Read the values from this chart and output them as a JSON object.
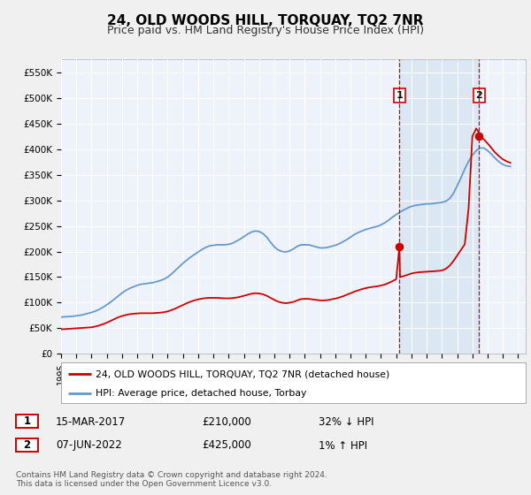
{
  "title": "24, OLD WOODS HILL, TORQUAY, TQ2 7NR",
  "subtitle": "Price paid vs. HM Land Registry's House Price Index (HPI)",
  "title_fontsize": 11,
  "subtitle_fontsize": 9,
  "ylim": [
    0,
    575000
  ],
  "yticks": [
    0,
    50000,
    100000,
    150000,
    200000,
    250000,
    300000,
    350000,
    400000,
    450000,
    500000,
    550000
  ],
  "ytick_labels": [
    "£0",
    "£50K",
    "£100K",
    "£150K",
    "£200K",
    "£250K",
    "£300K",
    "£350K",
    "£400K",
    "£450K",
    "£500K",
    "£550K"
  ],
  "xlim_start": 1995.0,
  "xlim_end": 2025.5,
  "xtick_years": [
    1995,
    1996,
    1997,
    1998,
    1999,
    2000,
    2001,
    2002,
    2003,
    2004,
    2005,
    2006,
    2007,
    2008,
    2009,
    2010,
    2011,
    2012,
    2013,
    2014,
    2015,
    2016,
    2017,
    2018,
    2019,
    2020,
    2021,
    2022,
    2023,
    2024,
    2025
  ],
  "bg_color": "#f0f0f0",
  "plot_bg_color": "#eef3fb",
  "shade_color": "#d0e0f0",
  "grid_color": "#ffffff",
  "red_line_color": "#cc0000",
  "blue_line_color": "#6699cc",
  "marker_color": "#cc0000",
  "dashed_line_color": "#cc0000",
  "point1_x": 2017.21,
  "point1_y": 210000,
  "point2_x": 2022.44,
  "point2_y": 425000,
  "legend_line1": "24, OLD WOODS HILL, TORQUAY, TQ2 7NR (detached house)",
  "legend_line2": "HPI: Average price, detached house, Torbay",
  "annotation1_text": "15-MAR-2017",
  "annotation1_price": "£210,000",
  "annotation1_hpi": "32% ↓ HPI",
  "annotation2_text": "07-JUN-2022",
  "annotation2_price": "£425,000",
  "annotation2_hpi": "1% ↑ HPI",
  "footer1": "Contains HM Land Registry data © Crown copyright and database right 2024.",
  "footer2": "This data is licensed under the Open Government Licence v3.0.",
  "hpi_years": [
    1995.0,
    1995.25,
    1995.5,
    1995.75,
    1996.0,
    1996.25,
    1996.5,
    1996.75,
    1997.0,
    1997.25,
    1997.5,
    1997.75,
    1998.0,
    1998.25,
    1998.5,
    1998.75,
    1999.0,
    1999.25,
    1999.5,
    1999.75,
    2000.0,
    2000.25,
    2000.5,
    2000.75,
    2001.0,
    2001.25,
    2001.5,
    2001.75,
    2002.0,
    2002.25,
    2002.5,
    2002.75,
    2003.0,
    2003.25,
    2003.5,
    2003.75,
    2004.0,
    2004.25,
    2004.5,
    2004.75,
    2005.0,
    2005.25,
    2005.5,
    2005.75,
    2006.0,
    2006.25,
    2006.5,
    2006.75,
    2007.0,
    2007.25,
    2007.5,
    2007.75,
    2008.0,
    2008.25,
    2008.5,
    2008.75,
    2009.0,
    2009.25,
    2009.5,
    2009.75,
    2010.0,
    2010.25,
    2010.5,
    2010.75,
    2011.0,
    2011.25,
    2011.5,
    2011.75,
    2012.0,
    2012.25,
    2012.5,
    2012.75,
    2013.0,
    2013.25,
    2013.5,
    2013.75,
    2014.0,
    2014.25,
    2014.5,
    2014.75,
    2015.0,
    2015.25,
    2015.5,
    2015.75,
    2016.0,
    2016.25,
    2016.5,
    2016.75,
    2017.0,
    2017.25,
    2017.5,
    2017.75,
    2018.0,
    2018.25,
    2018.5,
    2018.75,
    2019.0,
    2019.25,
    2019.5,
    2019.75,
    2020.0,
    2020.25,
    2020.5,
    2020.75,
    2021.0,
    2021.25,
    2021.5,
    2021.75,
    2022.0,
    2022.25,
    2022.5,
    2022.75,
    2023.0,
    2023.25,
    2023.5,
    2023.75,
    2024.0,
    2024.25,
    2024.5
  ],
  "hpi_values": [
    72000,
    72500,
    73000,
    73500,
    74500,
    75500,
    77000,
    79000,
    81000,
    83500,
    87000,
    91000,
    96000,
    101000,
    107000,
    113000,
    119000,
    124000,
    128000,
    131000,
    134000,
    136000,
    137000,
    138000,
    139000,
    141000,
    143000,
    146000,
    150000,
    156000,
    163000,
    170000,
    177000,
    183000,
    189000,
    194000,
    199000,
    204000,
    208000,
    211000,
    212000,
    213000,
    213000,
    213000,
    214000,
    216000,
    220000,
    224000,
    229000,
    234000,
    238000,
    240000,
    239000,
    235000,
    228000,
    218000,
    209000,
    203000,
    200000,
    199000,
    201000,
    205000,
    210000,
    213000,
    213000,
    213000,
    211000,
    209000,
    207000,
    207000,
    208000,
    210000,
    212000,
    215000,
    219000,
    223000,
    228000,
    233000,
    237000,
    240000,
    243000,
    245000,
    247000,
    249000,
    252000,
    256000,
    261000,
    267000,
    272000,
    277000,
    281000,
    285000,
    288000,
    290000,
    291000,
    292000,
    293000,
    293000,
    294000,
    295000,
    296000,
    298000,
    303000,
    313000,
    328000,
    344000,
    361000,
    376000,
    388000,
    397000,
    402000,
    402000,
    397000,
    390000,
    382000,
    375000,
    370000,
    367000,
    366000
  ],
  "red_years": [
    1995.0,
    1995.25,
    1995.5,
    1995.75,
    1996.0,
    1996.25,
    1996.5,
    1996.75,
    1997.0,
    1997.25,
    1997.5,
    1997.75,
    1998.0,
    1998.25,
    1998.5,
    1998.75,
    1999.0,
    1999.25,
    1999.5,
    1999.75,
    2000.0,
    2000.25,
    2000.5,
    2000.75,
    2001.0,
    2001.25,
    2001.5,
    2001.75,
    2002.0,
    2002.25,
    2002.5,
    2002.75,
    2003.0,
    2003.25,
    2003.5,
    2003.75,
    2004.0,
    2004.25,
    2004.5,
    2004.75,
    2005.0,
    2005.25,
    2005.5,
    2005.75,
    2006.0,
    2006.25,
    2006.5,
    2006.75,
    2007.0,
    2007.25,
    2007.5,
    2007.75,
    2008.0,
    2008.25,
    2008.5,
    2008.75,
    2009.0,
    2009.25,
    2009.5,
    2009.75,
    2010.0,
    2010.25,
    2010.5,
    2010.75,
    2011.0,
    2011.25,
    2011.5,
    2011.75,
    2012.0,
    2012.25,
    2012.5,
    2012.75,
    2013.0,
    2013.25,
    2013.5,
    2013.75,
    2014.0,
    2014.25,
    2014.5,
    2014.75,
    2015.0,
    2015.25,
    2015.5,
    2015.75,
    2016.0,
    2016.25,
    2016.5,
    2016.75,
    2017.0,
    2017.21,
    2017.25,
    2017.5,
    2017.75,
    2018.0,
    2018.25,
    2018.5,
    2018.75,
    2019.0,
    2019.25,
    2019.5,
    2019.75,
    2020.0,
    2020.25,
    2020.5,
    2020.75,
    2021.0,
    2021.25,
    2021.5,
    2021.75,
    2022.0,
    2022.25,
    2022.44,
    2022.5,
    2022.75,
    2023.0,
    2023.25,
    2023.5,
    2023.75,
    2024.0,
    2024.25,
    2024.5
  ],
  "red_values": [
    48000,
    48500,
    49000,
    49500,
    50000,
    50500,
    51000,
    51500,
    52000,
    53500,
    55500,
    58000,
    61000,
    64500,
    68000,
    71500,
    74000,
    76000,
    77500,
    78500,
    79000,
    79500,
    79500,
    79500,
    79500,
    80000,
    80500,
    81500,
    83000,
    85500,
    88500,
    92000,
    95500,
    99000,
    102000,
    104500,
    106500,
    108000,
    109000,
    109500,
    109500,
    109500,
    109000,
    108500,
    108500,
    109000,
    110000,
    111500,
    113500,
    115500,
    117500,
    118500,
    118000,
    116500,
    113500,
    109500,
    105500,
    102000,
    100000,
    99000,
    100000,
    101500,
    104500,
    107000,
    107500,
    107500,
    106500,
    105500,
    104500,
    104500,
    105000,
    106500,
    108000,
    110000,
    112500,
    115500,
    118500,
    121500,
    124000,
    126500,
    128500,
    130000,
    131000,
    132000,
    133500,
    135500,
    138500,
    142000,
    146000,
    210000,
    150000,
    152000,
    154500,
    157000,
    158500,
    159500,
    160000,
    160500,
    161000,
    161500,
    162000,
    163000,
    166000,
    172000,
    181000,
    192000,
    203000,
    214000,
    284000,
    425000,
    440000,
    432000,
    425000,
    419000,
    411000,
    402000,
    393000,
    386000,
    380000,
    376000,
    373000
  ]
}
